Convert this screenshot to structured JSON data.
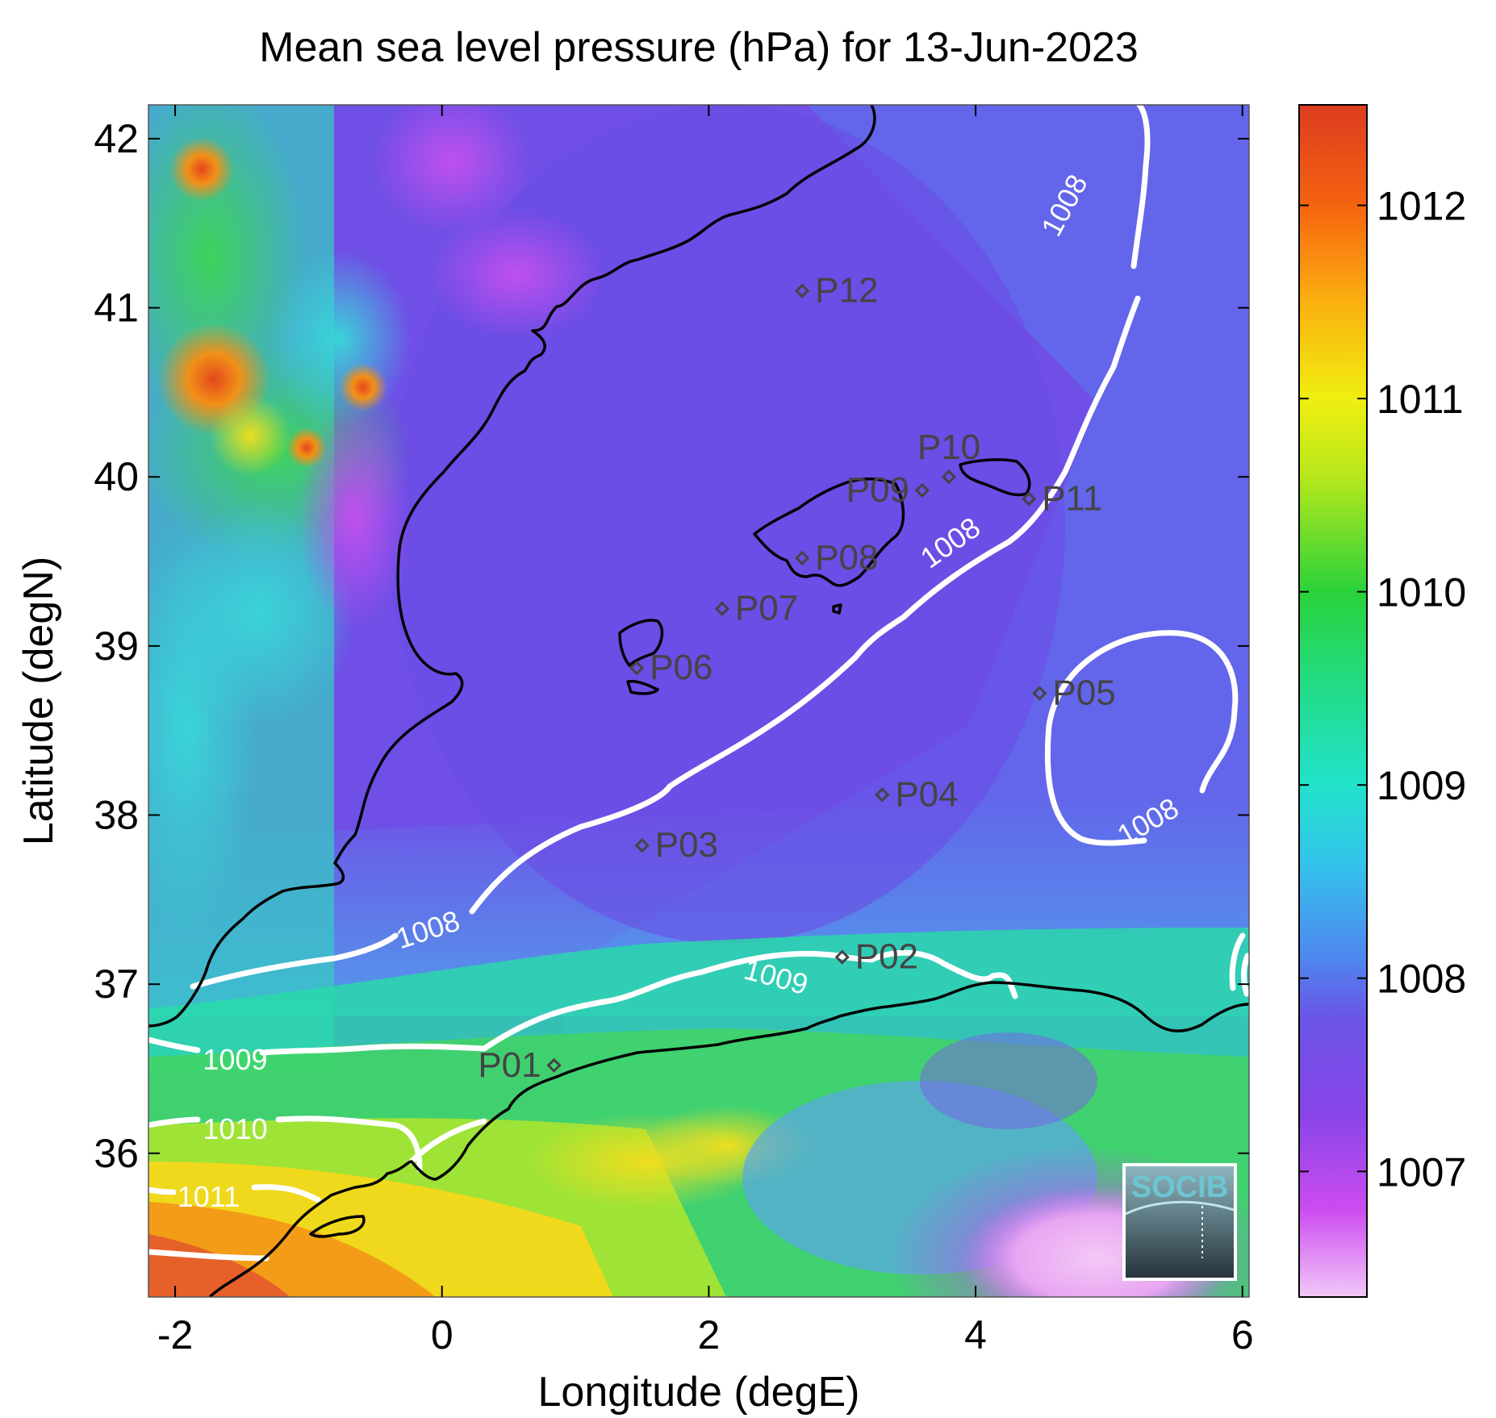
{
  "figure": {
    "title": "Mean sea level pressure (hPa) for 13-Jun-2023",
    "xlabel": "Longitude (degE)",
    "ylabel": "Latitude (degN)",
    "logo_text": "SOCIB"
  },
  "map": {
    "lon_range": [
      -2.2,
      6.05
    ],
    "lat_range": [
      35.15,
      42.2
    ],
    "x_ticks": [
      {
        "value": -2,
        "label": "-2"
      },
      {
        "value": 0,
        "label": "0"
      },
      {
        "value": 2,
        "label": "2"
      },
      {
        "value": 4,
        "label": "4"
      },
      {
        "value": 6,
        "label": "6"
      }
    ],
    "y_ticks": [
      {
        "value": 36,
        "label": "36"
      },
      {
        "value": 37,
        "label": "37"
      },
      {
        "value": 38,
        "label": "38"
      },
      {
        "value": 39,
        "label": "39"
      },
      {
        "value": 40,
        "label": "40"
      },
      {
        "value": 41,
        "label": "41"
      },
      {
        "value": 42,
        "label": "42"
      }
    ],
    "stations": [
      {
        "id": "P01",
        "lon": 0.84,
        "lat": 36.52,
        "label_side": "left"
      },
      {
        "id": "P02",
        "lon": 3.0,
        "lat": 37.16,
        "label_side": "right"
      },
      {
        "id": "P03",
        "lon": 1.5,
        "lat": 37.82,
        "label_side": "right"
      },
      {
        "id": "P04",
        "lon": 3.3,
        "lat": 38.12,
        "label_side": "right"
      },
      {
        "id": "P05",
        "lon": 4.48,
        "lat": 38.72,
        "label_side": "right"
      },
      {
        "id": "P06",
        "lon": 1.46,
        "lat": 38.87,
        "label_side": "right"
      },
      {
        "id": "P07",
        "lon": 2.1,
        "lat": 39.22,
        "label_side": "right"
      },
      {
        "id": "P08",
        "lon": 2.7,
        "lat": 39.52,
        "label_side": "right"
      },
      {
        "id": "P09",
        "lon": 3.6,
        "lat": 39.92,
        "label_side": "left"
      },
      {
        "id": "P10",
        "lon": 3.8,
        "lat": 40.0,
        "label_side": "above"
      },
      {
        "id": "P11",
        "lon": 4.4,
        "lat": 39.87,
        "label_side": "right"
      },
      {
        "id": "P12",
        "lon": 2.7,
        "lat": 41.1,
        "label_side": "right"
      }
    ],
    "contour_labels": [
      {
        "text": "1008",
        "lon": 4.68,
        "lat": 41.6,
        "angle": -62
      },
      {
        "text": "1008",
        "lon": 3.82,
        "lat": 39.6,
        "angle": -35
      },
      {
        "text": "1008",
        "lon": 5.3,
        "lat": 37.95,
        "angle": -30
      },
      {
        "text": "1008",
        "lon": -0.1,
        "lat": 37.31,
        "angle": -18
      },
      {
        "text": "1009",
        "lon": 2.5,
        "lat": 37.03,
        "angle": 15
      },
      {
        "text": "1009",
        "lon": -1.55,
        "lat": 36.54,
        "angle": 0
      },
      {
        "text": "1010",
        "lon": -1.55,
        "lat": 36.13,
        "angle": 0
      },
      {
        "text": "1011",
        "lon": -1.75,
        "lat": 35.73,
        "angle": 0
      }
    ]
  },
  "colorbar": {
    "range": [
      1006.35,
      1012.52
    ],
    "ticks": [
      {
        "value": 1007,
        "label": "1007"
      },
      {
        "value": 1008,
        "label": "1008"
      },
      {
        "value": 1009,
        "label": "1009"
      },
      {
        "value": 1010,
        "label": "1010"
      },
      {
        "value": 1011,
        "label": "1011"
      },
      {
        "value": 1012,
        "label": "1012"
      }
    ],
    "stops": [
      {
        "value": 1006.35,
        "color": "#f2c8f8"
      },
      {
        "value": 1006.8,
        "color": "#cc4cf0"
      },
      {
        "value": 1007.3,
        "color": "#8844e8"
      },
      {
        "value": 1007.8,
        "color": "#6a55e6"
      },
      {
        "value": 1008.1,
        "color": "#4f86ee"
      },
      {
        "value": 1008.6,
        "color": "#33c4ec"
      },
      {
        "value": 1009.0,
        "color": "#22e2cc"
      },
      {
        "value": 1009.5,
        "color": "#22dc88"
      },
      {
        "value": 1010.0,
        "color": "#2ad23a"
      },
      {
        "value": 1010.6,
        "color": "#b8e81c"
      },
      {
        "value": 1011.0,
        "color": "#f0ee10"
      },
      {
        "value": 1011.5,
        "color": "#fbb010"
      },
      {
        "value": 1012.0,
        "color": "#f56410"
      },
      {
        "value": 1012.52,
        "color": "#dc3c20"
      }
    ]
  },
  "colors": {
    "contour": "#ffffff",
    "coastline": "#000000",
    "station_text": "#444444"
  }
}
